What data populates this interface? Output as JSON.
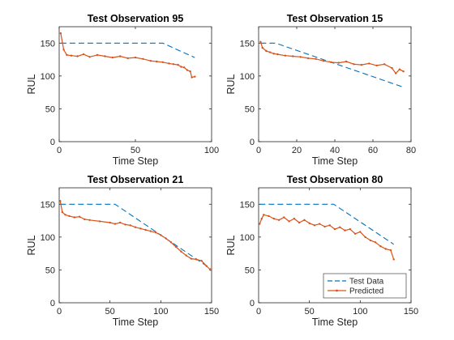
{
  "chart_data": [
    {
      "type": "line",
      "title": "Test Observation 95",
      "xlabel": "Time Step",
      "ylabel": "RUL",
      "xlim": [
        0,
        100
      ],
      "ylim": [
        0,
        175
      ],
      "xticks": [
        0,
        50,
        100
      ],
      "yticks": [
        0,
        50,
        100,
        150
      ],
      "series": [
        {
          "name": "Test Data",
          "style": "dashed",
          "color": "#0072BD",
          "x": [
            1,
            68,
            89
          ],
          "y": [
            150,
            150,
            128
          ]
        },
        {
          "name": "Predicted",
          "style": "line-markers",
          "color": "#D95319",
          "x": [
            1,
            3,
            5,
            8,
            12,
            16,
            20,
            25,
            30,
            35,
            40,
            45,
            50,
            55,
            60,
            64,
            68,
            72,
            75,
            78,
            80,
            82,
            84,
            86,
            87,
            89
          ],
          "y": [
            165,
            140,
            132,
            131,
            130,
            133,
            129,
            132,
            130,
            128,
            130,
            127,
            128,
            126,
            123,
            122,
            121,
            119,
            118,
            117,
            114,
            113,
            109,
            107,
            98,
            99
          ]
        }
      ],
      "legend": false
    },
    {
      "type": "line",
      "title": "Test Observation 15",
      "xlabel": "Time Step",
      "ylabel": "RUL",
      "xlim": [
        0,
        80
      ],
      "ylim": [
        0,
        175
      ],
      "xticks": [
        0,
        20,
        40,
        60,
        80
      ],
      "yticks": [
        0,
        50,
        100,
        150
      ],
      "series": [
        {
          "name": "Test Data",
          "style": "dashed",
          "color": "#0072BD",
          "x": [
            1,
            9,
            76
          ],
          "y": [
            150,
            150,
            83
          ]
        },
        {
          "name": "Predicted",
          "style": "line-markers",
          "color": "#D95319",
          "x": [
            1,
            2,
            4,
            6,
            8,
            10,
            14,
            18,
            22,
            26,
            30,
            34,
            38,
            42,
            46,
            50,
            54,
            58,
            62,
            66,
            70,
            72,
            74,
            76
          ],
          "y": [
            152,
            143,
            138,
            136,
            134,
            133,
            131,
            130,
            129,
            127,
            126,
            123,
            121,
            120,
            122,
            118,
            117,
            119,
            116,
            118,
            112,
            104,
            110,
            107
          ]
        }
      ],
      "legend": false
    },
    {
      "type": "line",
      "title": "Test Observation 21",
      "xlabel": "Time Step",
      "ylabel": "RUL",
      "xlim": [
        0,
        150
      ],
      "ylim": [
        0,
        175
      ],
      "xticks": [
        0,
        50,
        100,
        150
      ],
      "yticks": [
        0,
        50,
        100,
        150
      ],
      "series": [
        {
          "name": "Test Data",
          "style": "dashed",
          "color": "#0072BD",
          "x": [
            1,
            55,
            149
          ],
          "y": [
            150,
            150,
            52
          ]
        },
        {
          "name": "Predicted",
          "style": "line-markers",
          "color": "#D95319",
          "x": [
            1,
            3,
            6,
            10,
            15,
            20,
            25,
            30,
            40,
            50,
            55,
            60,
            65,
            70,
            75,
            80,
            85,
            90,
            95,
            100,
            105,
            110,
            115,
            120,
            125,
            130,
            135,
            140,
            145,
            149
          ],
          "y": [
            155,
            138,
            134,
            132,
            130,
            131,
            127,
            126,
            124,
            122,
            120,
            122,
            119,
            118,
            115,
            113,
            111,
            109,
            107,
            103,
            98,
            92,
            85,
            78,
            72,
            67,
            66,
            64,
            56,
            50
          ]
        }
      ],
      "legend": false
    },
    {
      "type": "line",
      "title": "Test Observation 80",
      "xlabel": "Time Step",
      "ylabel": "RUL",
      "xlim": [
        0,
        150
      ],
      "ylim": [
        0,
        175
      ],
      "xticks": [
        0,
        50,
        100,
        150
      ],
      "yticks": [
        0,
        50,
        100,
        150
      ],
      "series": [
        {
          "name": "Test Data",
          "style": "dashed",
          "color": "#0072BD",
          "x": [
            1,
            74,
            133
          ],
          "y": [
            150,
            150,
            89
          ]
        },
        {
          "name": "Predicted",
          "style": "line-markers",
          "color": "#D95319",
          "x": [
            1,
            3,
            5,
            10,
            15,
            20,
            25,
            30,
            35,
            40,
            45,
            50,
            55,
            60,
            65,
            70,
            75,
            80,
            85,
            90,
            95,
            100,
            105,
            110,
            115,
            120,
            125,
            130,
            133
          ],
          "y": [
            120,
            128,
            134,
            132,
            128,
            126,
            130,
            124,
            128,
            122,
            126,
            121,
            118,
            120,
            116,
            118,
            112,
            115,
            110,
            112,
            105,
            108,
            100,
            95,
            92,
            86,
            82,
            80,
            66
          ]
        }
      ],
      "legend": true,
      "legend_location": "bottom-right"
    }
  ]
}
